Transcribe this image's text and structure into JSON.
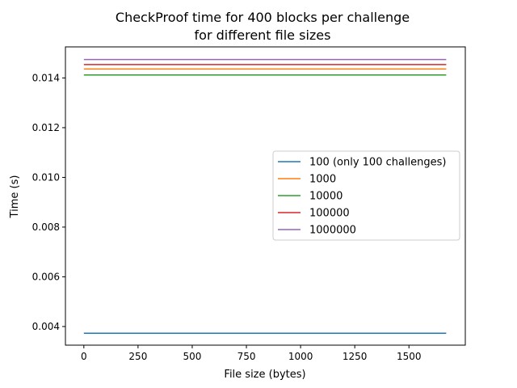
{
  "chart_data": {
    "type": "line",
    "title_lines": [
      "CheckProof time for 400 blocks per challenge",
      "for different file sizes"
    ],
    "xlabel": "File size (bytes)",
    "ylabel": "Time (s)",
    "xlim": [
      -85,
      1760
    ],
    "ylim": [
      0.00325,
      0.01525
    ],
    "xticks": [
      0,
      250,
      500,
      750,
      1000,
      1250,
      1500
    ],
    "yticks": [
      0.004,
      0.006,
      0.008,
      0.01,
      0.012,
      0.014
    ],
    "ytick_labels": [
      "0.004",
      "0.006",
      "0.008",
      "0.010",
      "0.012",
      "0.014"
    ],
    "grid": false,
    "legend_position": "center-right",
    "series": [
      {
        "name": "100 (only 100 challenges)",
        "color": "#1f77b4",
        "x": [
          0,
          1672
        ],
        "y": [
          0.00373,
          0.00373
        ]
      },
      {
        "name": "1000",
        "color": "#ff7f0e",
        "x": [
          0,
          1672
        ],
        "y": [
          0.01436,
          0.01436
        ]
      },
      {
        "name": "10000",
        "color": "#2ca02c",
        "x": [
          0,
          1672
        ],
        "y": [
          0.01412,
          0.01412
        ]
      },
      {
        "name": "100000",
        "color": "#d62728",
        "x": [
          0,
          1672
        ],
        "y": [
          0.01454,
          0.01454
        ]
      },
      {
        "name": "1000000",
        "color": "#9467bd",
        "x": [
          0,
          1672
        ],
        "y": [
          0.01474,
          0.01474
        ]
      }
    ]
  }
}
